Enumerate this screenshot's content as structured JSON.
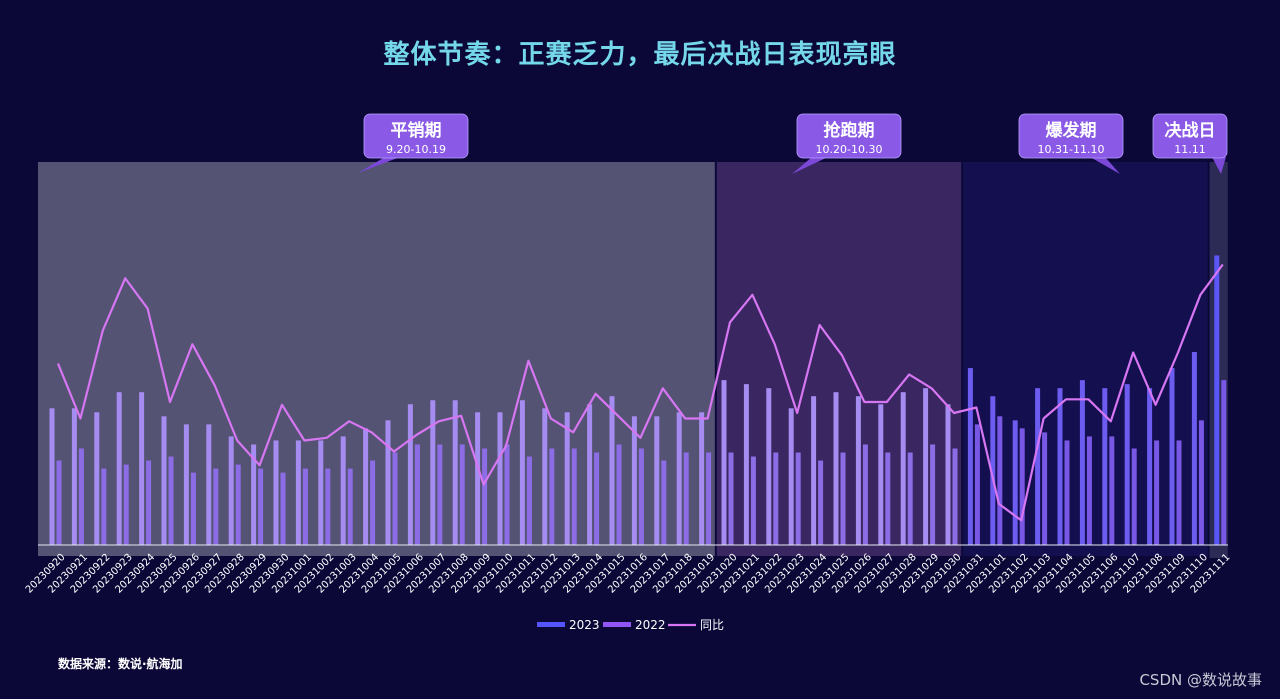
{
  "title": "整体节奏：正赛乏力，最后决战日表现亮眼",
  "source": "数据来源：数说·航海加",
  "watermark": "CSDN @数说故事",
  "faint_note": [
    "",
    "",
    ""
  ],
  "colors": {
    "background": "#0b0838",
    "title": "#74d8ea",
    "bar_2023": "#a58cf0",
    "bar_2022": "#8d6de6",
    "line_yoy": "#d776f2",
    "legend_2023": "#5555ff",
    "legend_2022": "#8f55f5",
    "phase1_bg": "#555374",
    "phase2_bg": "#3a2660",
    "phase3_bg": "#141050",
    "phase4_bg": "#2b2b55",
    "callout": "#9060e8"
  },
  "phases": [
    {
      "name": "平销期",
      "range": "9.20-10.19",
      "start_index": 0,
      "end_index": 29
    },
    {
      "name": "抢跑期",
      "range": "10.20-10.30",
      "start_index": 30,
      "end_index": 40
    },
    {
      "name": "爆发期",
      "range": "10.31-11.10",
      "start_index": 41,
      "end_index": 51
    },
    {
      "name": "决战日",
      "range": "11.11",
      "start_index": 52,
      "end_index": 52
    }
  ],
  "chart_data": {
    "type": "bar",
    "categories": [
      "20230920",
      "20230921",
      "20230922",
      "20230923",
      "20230924",
      "20230925",
      "20230926",
      "20230927",
      "20230928",
      "20230929",
      "20230930",
      "20231001",
      "20231002",
      "20231003",
      "20231004",
      "20231005",
      "20231006",
      "20231007",
      "20231008",
      "20231009",
      "20231010",
      "20231011",
      "20231012",
      "20231013",
      "20231014",
      "20231015",
      "20231016",
      "20231017",
      "20231018",
      "20231019",
      "20231020",
      "20231021",
      "20231022",
      "20231023",
      "20231024",
      "20231025",
      "20231026",
      "20231027",
      "20231028",
      "20231029",
      "20231030",
      "20231031",
      "20231101",
      "20231102",
      "20231103",
      "20231104",
      "20231105",
      "20231106",
      "20231107",
      "20231108",
      "20231109",
      "20231110",
      "20231111"
    ],
    "series": [
      {
        "name": "2023",
        "type": "bar",
        "values": [
          34,
          34,
          33,
          38,
          38,
          32,
          30,
          30,
          27,
          25,
          26,
          26,
          26,
          27,
          29,
          31,
          35,
          36,
          36,
          33,
          33,
          36,
          34,
          33,
          35,
          37,
          32,
          32,
          33,
          33,
          41,
          40,
          39,
          34,
          37,
          38,
          37,
          35,
          38,
          39,
          35,
          44,
          37,
          31,
          39,
          39,
          41,
          39,
          40,
          39,
          44,
          48,
          72
        ]
      },
      {
        "name": "2022",
        "type": "bar",
        "values": [
          21,
          24,
          19,
          20,
          21,
          22,
          18,
          19,
          20,
          19,
          18,
          19,
          19,
          19,
          21,
          23,
          25,
          25,
          25,
          24,
          25,
          22,
          24,
          24,
          23,
          25,
          24,
          21,
          23,
          23,
          23,
          22,
          23,
          23,
          21,
          23,
          25,
          23,
          23,
          25,
          24,
          30,
          32,
          29,
          28,
          26,
          27,
          27,
          24,
          26,
          26,
          31,
          41
        ]
      },
      {
        "name": "同比",
        "type": "line",
        "values": [
          66,
          46,
          78,
          97,
          86,
          52,
          73,
          58,
          38,
          29,
          51,
          38,
          39,
          45,
          41,
          34,
          40,
          45,
          47,
          22,
          36,
          67,
          46,
          41,
          55,
          47,
          39,
          57,
          46,
          46,
          81,
          91,
          73,
          48,
          80,
          69,
          52,
          52,
          62,
          57,
          48,
          50,
          15,
          9,
          46,
          53,
          53,
          45,
          70,
          51,
          70,
          91,
          102
        ]
      }
    ],
    "bar_ylim": [
      0,
      90
    ],
    "line_ylim": [
      0,
      140
    ],
    "legend": [
      "2023",
      "2022",
      "同比"
    ],
    "legend_position": "bottom"
  }
}
